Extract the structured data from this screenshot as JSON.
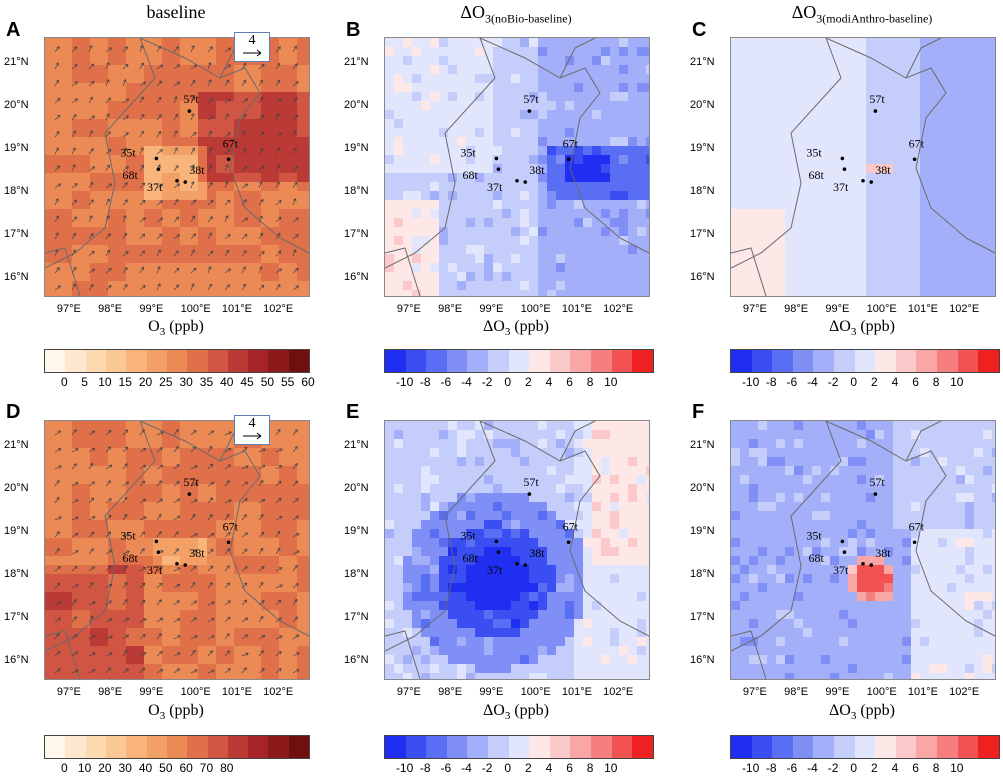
{
  "panels": [
    {
      "letter": "A",
      "title": "baseline",
      "title_sub": "",
      "xlabel": "O",
      "xlabel_sub": "3",
      "xlabel_tail": " (ppb)",
      "kind": "abs",
      "top": true,
      "show_vectors": true,
      "show_legend": true
    },
    {
      "letter": "B",
      "title": "ΔO",
      "title_sub": "3(noBio-baseline)",
      "xlabel": "ΔO",
      "xlabel_sub": "3",
      "xlabel_tail": " (ppb)",
      "kind": "diff",
      "top": true,
      "show_vectors": false,
      "show_legend": false
    },
    {
      "letter": "C",
      "title": "ΔO",
      "title_sub": "3(modiAnthro-baseline)",
      "xlabel": "ΔO",
      "xlabel_sub": "3",
      "xlabel_tail": " (ppb)",
      "kind": "diff",
      "top": true,
      "show_vectors": false,
      "show_legend": false
    },
    {
      "letter": "D",
      "title": "",
      "title_sub": "",
      "xlabel": "O",
      "xlabel_sub": "3",
      "xlabel_tail": " (ppb)",
      "kind": "abs",
      "top": false,
      "show_vectors": true,
      "show_legend": true
    },
    {
      "letter": "E",
      "title": "",
      "title_sub": "",
      "xlabel": "ΔO",
      "xlabel_sub": "3",
      "xlabel_tail": " (ppb)",
      "kind": "diff",
      "top": false,
      "show_vectors": false,
      "show_legend": false
    },
    {
      "letter": "F",
      "title": "",
      "title_sub": "",
      "xlabel": "ΔO",
      "xlabel_sub": "3",
      "xlabel_tail": " (ppb)",
      "kind": "diff",
      "top": false,
      "show_vectors": false,
      "show_legend": false
    }
  ],
  "vector_legend_value": "4",
  "chart_data": [
    {
      "type": "heatmap",
      "panel": "A",
      "title": "baseline",
      "xlabel": "O3 (ppb)",
      "x_ticks": [
        "97°E",
        "98°E",
        "99°E",
        "100°E",
        "101°E",
        "102°E"
      ],
      "y_ticks": [
        "21°N",
        "20°N",
        "19°N",
        "18°N",
        "17°N",
        "16°N"
      ],
      "xlim": [
        96.3,
        102.7
      ],
      "ylim": [
        15.6,
        21.6
      ],
      "colorbar_ticks": [
        "0",
        "5",
        "10",
        "15",
        "20",
        "25",
        "30",
        "35",
        "40",
        "45",
        "50",
        "55",
        "60"
      ],
      "colorbar_colors": [
        "#fff6ec",
        "#fde8cf",
        "#fcd9b0",
        "#fbc895",
        "#f8b47b",
        "#f3a067",
        "#ec8a56",
        "#e0704a",
        "#d05542",
        "#bc3a36",
        "#a62328",
        "#8d1a1a",
        "#6f0f0f"
      ],
      "stations": [
        {
          "name": "57t",
          "lon": 99.8,
          "lat": 19.9
        },
        {
          "name": "35t",
          "lon": 99.0,
          "lat": 18.8
        },
        {
          "name": "68t",
          "lon": 99.05,
          "lat": 18.55
        },
        {
          "name": "37t",
          "lon": 99.5,
          "lat": 18.28
        },
        {
          "name": "38t",
          "lon": 99.7,
          "lat": 18.25
        },
        {
          "name": "67t",
          "lon": 100.75,
          "lat": 18.78
        }
      ]
    },
    {
      "type": "heatmap",
      "panel": "B",
      "title": "ΔO3(noBio-baseline)",
      "xlabel": "ΔO3 (ppb)",
      "x_ticks": [
        "97°E",
        "98°E",
        "99°E",
        "100°E",
        "101°E",
        "102°E"
      ],
      "y_ticks": [
        "21°N",
        "20°N",
        "19°N",
        "18°N",
        "17°N",
        "16°N"
      ],
      "colorbar_ticks": [
        "-10",
        "-8",
        "-6",
        "-4",
        "-2",
        "0",
        "2",
        "4",
        "6",
        "8",
        "10"
      ]
    },
    {
      "type": "heatmap",
      "panel": "C",
      "title": "ΔO3(modiAnthro-baseline)",
      "xlabel": "ΔO3 (ppb)",
      "x_ticks": [
        "97°E",
        "98°E",
        "99°E",
        "100°E",
        "101°E",
        "102°E"
      ],
      "y_ticks": [
        "21°N",
        "20°N",
        "19°N",
        "18°N",
        "17°N",
        "16°N"
      ],
      "colorbar_ticks": [
        "-10",
        "-8",
        "-6",
        "-4",
        "-2",
        "0",
        "2",
        "4",
        "6",
        "8",
        "10"
      ]
    },
    {
      "type": "heatmap",
      "panel": "D",
      "title": "",
      "xlabel": "O3 (ppb)",
      "x_ticks": [
        "97°E",
        "98°E",
        "99°E",
        "100°E",
        "101°E",
        "102°E"
      ],
      "y_ticks": [
        "21°N",
        "20°N",
        "19°N",
        "18°N",
        "17°N",
        "16°N"
      ],
      "colorbar_ticks": [
        "0",
        "10",
        "20",
        "30",
        "40",
        "50",
        "60",
        "70",
        "80"
      ],
      "colorbar_colors": [
        "#fff6ec",
        "#fde8cf",
        "#fcd9b0",
        "#fbc895",
        "#f8b47b",
        "#f3a067",
        "#ec8a56",
        "#e0704a",
        "#d05542",
        "#bc3a36",
        "#a62328",
        "#8d1a1a",
        "#6f0f0f"
      ]
    },
    {
      "type": "heatmap",
      "panel": "E",
      "title": "",
      "xlabel": "ΔO3 (ppb)",
      "x_ticks": [
        "97°E",
        "98°E",
        "99°E",
        "100°E",
        "101°E",
        "102°E"
      ],
      "y_ticks": [
        "21°N",
        "20°N",
        "19°N",
        "18°N",
        "17°N",
        "16°N"
      ],
      "colorbar_ticks": [
        "-10",
        "-8",
        "-6",
        "-4",
        "-2",
        "0",
        "2",
        "4",
        "6",
        "8",
        "10"
      ]
    },
    {
      "type": "heatmap",
      "panel": "F",
      "title": "",
      "xlabel": "ΔO3 (ppb)",
      "x_ticks": [
        "97°E",
        "98°E",
        "99°E",
        "100°E",
        "101°E",
        "102°E"
      ],
      "y_ticks": [
        "21°N",
        "20°N",
        "19°N",
        "18°N",
        "17°N",
        "16°N"
      ],
      "colorbar_ticks": [
        "-10",
        "-8",
        "-6",
        "-4",
        "-2",
        "0",
        "2",
        "4",
        "6",
        "8",
        "10"
      ]
    }
  ],
  "diff_colors": [
    "#1f2ef0",
    "#3a4ef2",
    "#5a6ef4",
    "#7f8ff6",
    "#a3aff8",
    "#c5cdfb",
    "#e2e6fd",
    "#fde7e7",
    "#fbc9c9",
    "#f8a6a6",
    "#f57f7f",
    "#f25252",
    "#ee2020"
  ],
  "stations": [
    {
      "name": "57t",
      "lon": 99.8,
      "lat": 19.9
    },
    {
      "name": "35t",
      "lon": 99.0,
      "lat": 18.8
    },
    {
      "name": "68t",
      "lon": 99.05,
      "lat": 18.55
    },
    {
      "name": "37t",
      "lon": 99.5,
      "lat": 18.28
    },
    {
      "name": "38t",
      "lon": 99.7,
      "lat": 18.25
    },
    {
      "name": "67t",
      "lon": 100.75,
      "lat": 18.78
    }
  ]
}
